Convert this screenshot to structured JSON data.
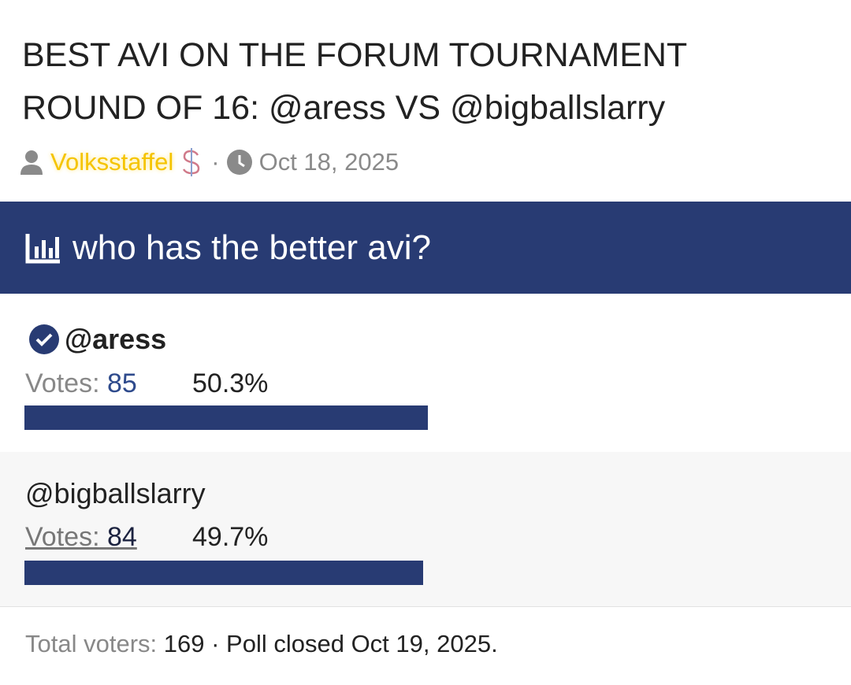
{
  "header": {
    "title_lines": [
      "BEST AVI ON THE FORUM TOURNAMENT",
      "ROUND OF 16: @aress VS @bigballslarry"
    ],
    "author": "Volksstaffel",
    "separator": "·",
    "date": "Oct 18, 2025"
  },
  "poll": {
    "question": "who has the better avi?",
    "votes_label": "Votes:",
    "options": [
      {
        "name": "@aress",
        "votes": 85,
        "percent": "50.3%",
        "chosen": true
      },
      {
        "name": "@bigballslarry",
        "votes": 84,
        "percent": "49.7%",
        "chosen": false
      }
    ],
    "total_label": "Total voters:",
    "total_voters": 169,
    "closed_text": "· Poll closed Oct 19, 2025."
  }
}
